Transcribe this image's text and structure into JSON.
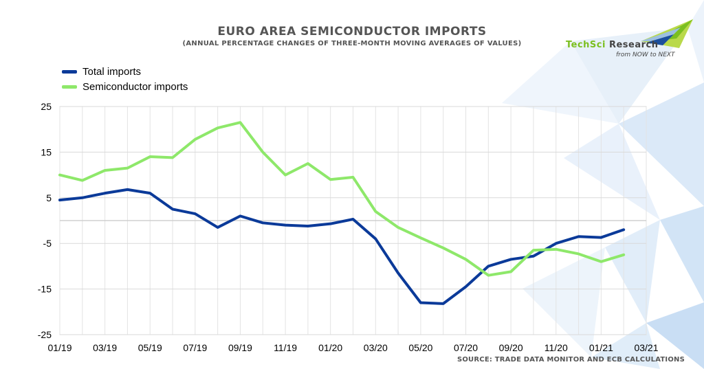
{
  "title": "EURO AREA SEMICONDUCTOR IMPORTS",
  "subtitle": "(ANNUAL PERCENTAGE CHANGES OF THREE-MONTH MOVING AVERAGES OF VALUES)",
  "logo": {
    "brand_part1": "TechSci",
    "brand_part2": " Research",
    "tagline": "from NOW to NEXT"
  },
  "source": "SOURCE: TRADE DATA MONITOR AND ECB CALCULATIONS",
  "chart_data": {
    "type": "line",
    "x": [
      "01/19",
      "02/19",
      "03/19",
      "04/19",
      "05/19",
      "06/19",
      "07/19",
      "08/19",
      "09/19",
      "10/19",
      "11/19",
      "12/19",
      "01/20",
      "02/20",
      "03/20",
      "04/20",
      "05/20",
      "06/20",
      "07/20",
      "08/20",
      "09/20",
      "10/20",
      "11/20",
      "12/20",
      "01/21",
      "02/21"
    ],
    "tick_labels": [
      "01/19",
      "03/19",
      "05/19",
      "07/19",
      "09/19",
      "11/19",
      "01/20",
      "03/20",
      "05/20",
      "07/20",
      "09/20",
      "11/20",
      "01/21",
      "03/21"
    ],
    "ylim": [
      -25,
      25
    ],
    "y_ticks": [
      25,
      15,
      5,
      -5,
      -15,
      -25
    ],
    "grid": true,
    "legend_position": "top-left",
    "series": [
      {
        "name": "Total imports",
        "color": "#0b3a99",
        "values": [
          4.5,
          5.0,
          6.0,
          6.8,
          6.0,
          2.5,
          1.5,
          -1.5,
          1.0,
          -0.5,
          -1.0,
          -1.2,
          -0.7,
          0.3,
          -4.0,
          -11.5,
          -18.0,
          -18.2,
          -14.5,
          -10.0,
          -8.5,
          -7.8,
          -5.0,
          -3.5,
          -3.7,
          -2.0
        ]
      },
      {
        "name": "Semiconductor imports",
        "color": "#8ee86a",
        "values": [
          10.0,
          8.8,
          11.0,
          11.5,
          14.0,
          13.8,
          17.8,
          20.3,
          21.5,
          15.0,
          10.0,
          12.5,
          9.0,
          9.5,
          2.0,
          -1.5,
          -3.8,
          -6.0,
          -8.5,
          -12.0,
          -11.2,
          -6.5,
          -6.3,
          -7.3,
          -9.0,
          -7.5
        ]
      }
    ]
  }
}
